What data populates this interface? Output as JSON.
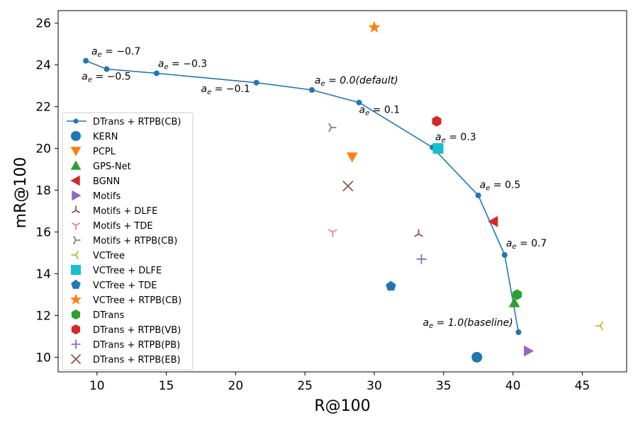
{
  "chart_data": {
    "type": "scatter",
    "title": "",
    "xlabel": "R@100",
    "ylabel": "mR@100",
    "xlim": [
      7.2,
      48.2
    ],
    "ylim": [
      9.3,
      26.6
    ],
    "xticks": [
      10,
      15,
      20,
      25,
      30,
      35,
      40,
      45
    ],
    "yticks": [
      10,
      12,
      14,
      16,
      18,
      20,
      22,
      24,
      26
    ],
    "legend_position": "center-left",
    "line_series": {
      "name": "DTrans + RTPB(CB)",
      "color": "#1f77b4",
      "x": [
        9.2,
        10.7,
        14.3,
        21.5,
        25.5,
        28.9,
        34.2,
        37.5,
        39.4,
        40.4
      ],
      "y": [
        24.2,
        23.8,
        23.6,
        23.15,
        22.8,
        22.2,
        20.05,
        17.75,
        14.9,
        11.2
      ]
    },
    "points": [
      {
        "name": "KERN",
        "marker": "circle",
        "color": "#1f77b4",
        "x": 37.4,
        "y": 10.0
      },
      {
        "name": "PCPL",
        "marker": "triangle-down",
        "color": "#ff7f0e",
        "x": 28.4,
        "y": 19.6
      },
      {
        "name": "GPS-Net",
        "marker": "triangle-up",
        "color": "#2ca02c",
        "x": 40.1,
        "y": 12.6
      },
      {
        "name": "BGNN",
        "marker": "triangle-left",
        "color": "#d62728",
        "x": 38.6,
        "y": 16.5
      },
      {
        "name": "Motifs",
        "marker": "triangle-right",
        "color": "#9467bd",
        "x": 41.1,
        "y": 10.3
      },
      {
        "name": "Motifs + DLFE",
        "marker": "tri-down",
        "color": "#8c564b",
        "x": 33.2,
        "y": 15.9
      },
      {
        "name": "Motifs + TDE",
        "marker": "tri-up",
        "color": "#e377c2",
        "x": 27.0,
        "y": 16.0
      },
      {
        "name": "Motifs + RTPB(CB)",
        "marker": "tri-left",
        "color": "#7f7f7f",
        "x": 26.9,
        "y": 21.0
      },
      {
        "name": "VCTree",
        "marker": "tri-right",
        "color": "#bcbd22",
        "x": 46.3,
        "y": 11.5
      },
      {
        "name": "VCTree + DLFE",
        "marker": "square",
        "color": "#17becf",
        "x": 34.6,
        "y": 20.0
      },
      {
        "name": "VCTree + TDE",
        "marker": "pentagon",
        "color": "#1f77b4",
        "x": 31.2,
        "y": 13.4
      },
      {
        "name": "VCTree + RTPB(CB)",
        "marker": "star",
        "color": "#ff7f0e",
        "x": 30.0,
        "y": 25.8
      },
      {
        "name": "DTrans",
        "marker": "hexagon",
        "color": "#2ca02c",
        "x": 40.3,
        "y": 13.0
      },
      {
        "name": "DTrans + RTPB(VB)",
        "marker": "hexagon",
        "color": "#d62728",
        "x": 34.5,
        "y": 21.3
      },
      {
        "name": "DTrans + RTPB(PB)",
        "marker": "plus",
        "color": "#9467bd",
        "x": 33.4,
        "y": 14.7
      },
      {
        "name": "DTrans + RTPB(EB)",
        "marker": "x",
        "color": "#8c564b",
        "x": 28.1,
        "y": 18.2
      }
    ],
    "annotations": [
      {
        "text": "a_e = −0.7",
        "x": 9.6,
        "y": 24.5,
        "color": "#000000",
        "italic": false
      },
      {
        "text": "a_e = −0.5",
        "x": 8.9,
        "y": 23.3,
        "color": "#000000",
        "italic": false
      },
      {
        "text": "a_e = −0.3",
        "x": 14.4,
        "y": 23.9,
        "color": "#000000",
        "italic": false
      },
      {
        "text": "a_e = −0.1",
        "x": 17.5,
        "y": 22.7,
        "color": "#000000",
        "italic": false
      },
      {
        "text": "a_e = 0.0(default)",
        "x": 25.7,
        "y": 23.1,
        "color": "#ff0000",
        "italic": true
      },
      {
        "text": "a_e = 0.1",
        "x": 28.9,
        "y": 21.7,
        "color": "#000000",
        "italic": false
      },
      {
        "text": "a_e = 0.3",
        "x": 34.4,
        "y": 20.4,
        "color": "#000000",
        "italic": false
      },
      {
        "text": "a_e = 0.5",
        "x": 37.6,
        "y": 18.1,
        "color": "#000000",
        "italic": false
      },
      {
        "text": "a_e = 0.7",
        "x": 39.5,
        "y": 15.3,
        "color": "#000000",
        "italic": false
      },
      {
        "text": "a_e = 1.0(baseline)",
        "x": 33.5,
        "y": 11.5,
        "color": "#ff0000",
        "italic": true
      }
    ]
  }
}
